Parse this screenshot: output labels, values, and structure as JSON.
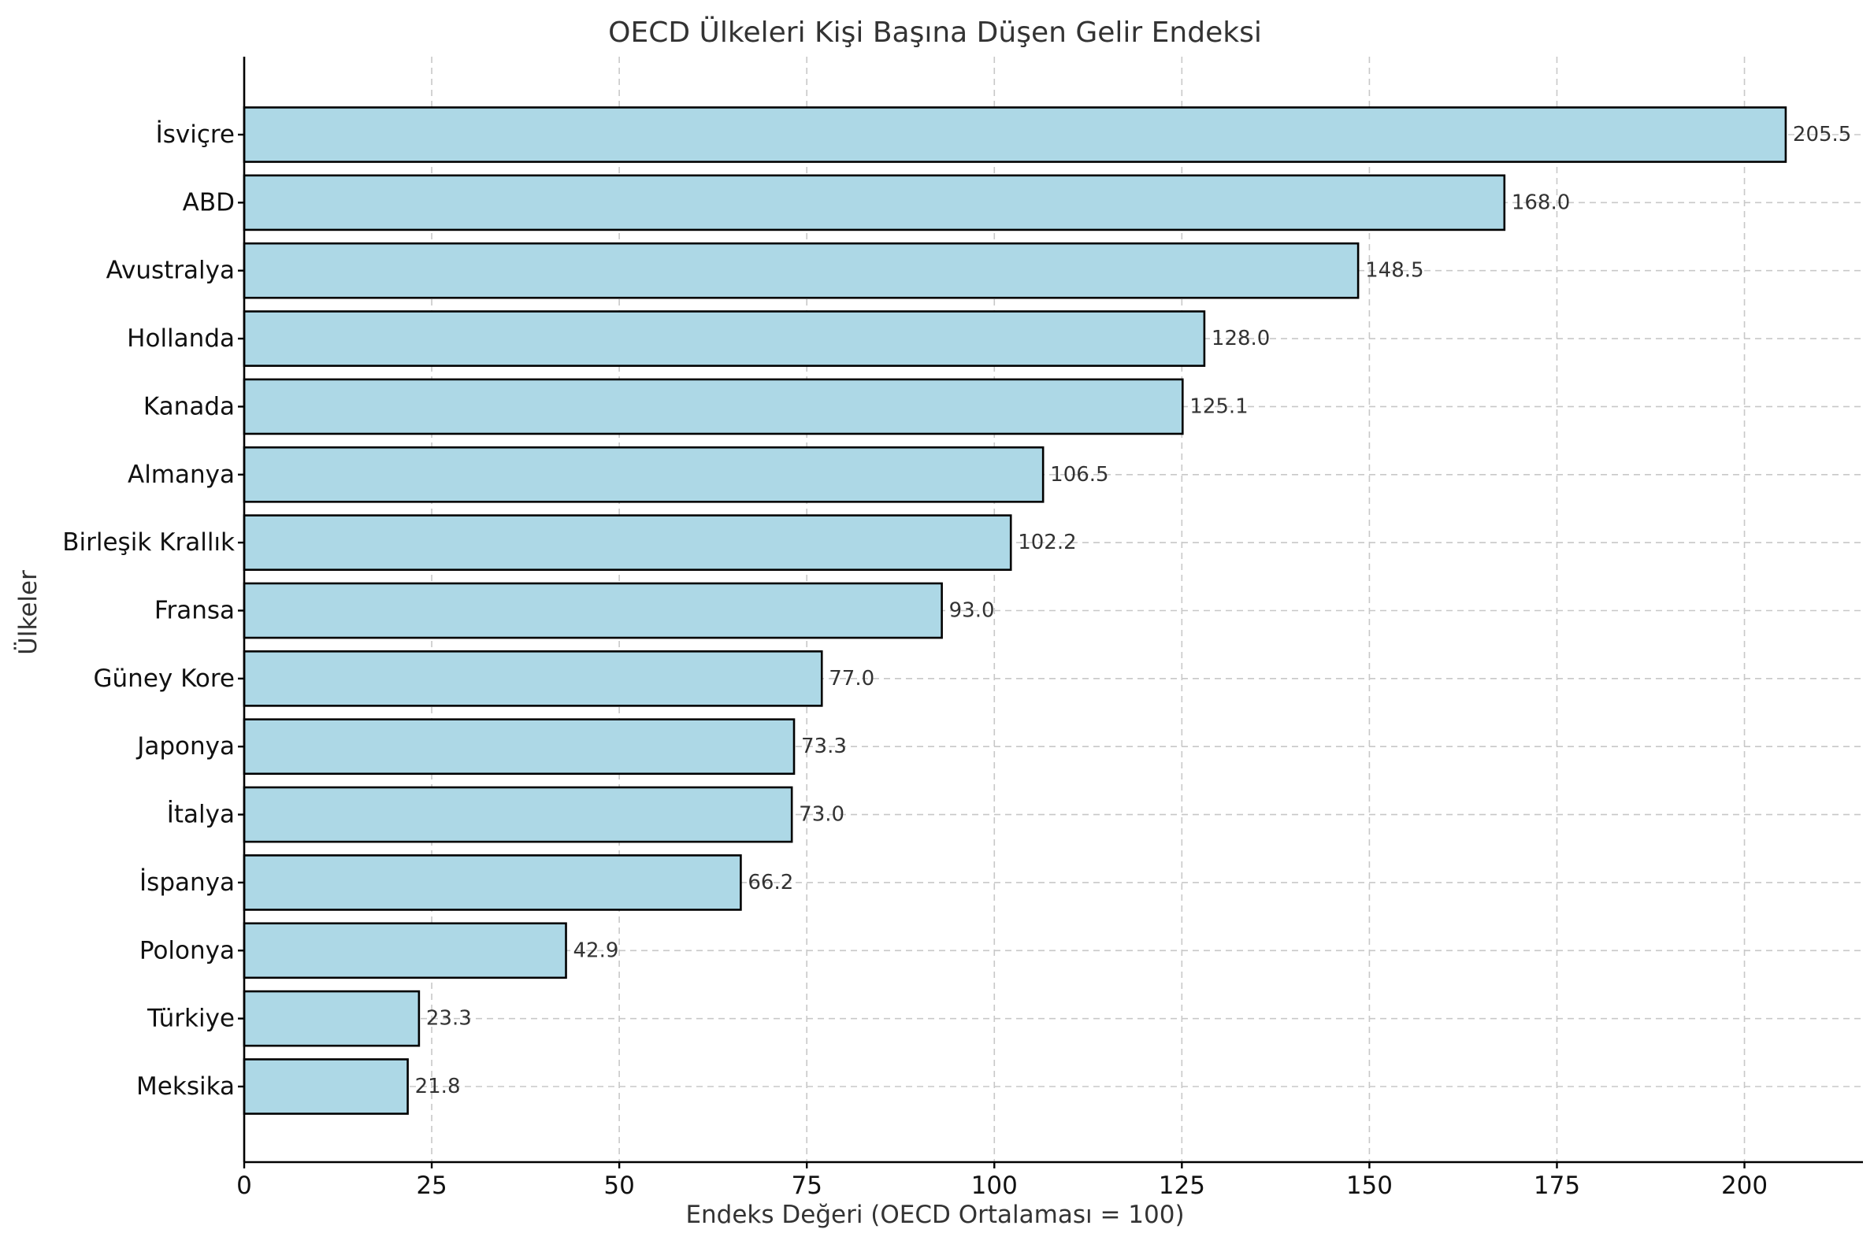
{
  "chart_data": {
    "type": "bar",
    "orientation": "horizontal",
    "title": "OECD Ülkeleri Kişi Başına Düşen Gelir Endeksi",
    "xlabel": "Endeks Değeri (OECD Ortalaması = 100)",
    "ylabel": "Ülkeler",
    "categories": [
      "İsviçre",
      "ABD",
      "Avustralya",
      "Hollanda",
      "Kanada",
      "Almanya",
      "Birleşik Krallık",
      "Fransa",
      "Güney Kore",
      "Japonya",
      "İtalya",
      "İspanya",
      "Polonya",
      "Türkiye",
      "Meksika"
    ],
    "values": [
      205.5,
      168.0,
      148.5,
      128.0,
      125.1,
      106.5,
      102.2,
      93.0,
      77.0,
      73.3,
      73.0,
      66.2,
      42.9,
      23.3,
      21.8
    ],
    "value_labels": [
      "205.5",
      "168.0",
      "148.5",
      "128.0",
      "125.1",
      "106.5",
      "102.2",
      "93.0",
      "77.0",
      "73.3",
      "73.0",
      "66.2",
      "42.9",
      "23.3",
      "21.8"
    ],
    "xlim": [
      0,
      215.8
    ],
    "xticks": [
      0,
      25,
      50,
      75,
      100,
      125,
      150,
      175,
      200
    ],
    "xtick_labels": [
      "0",
      "25",
      "50",
      "75",
      "100",
      "125",
      "150",
      "175",
      "200"
    ],
    "grid": true,
    "bar_color": "#add8e6",
    "edge_color": "#000000"
  }
}
